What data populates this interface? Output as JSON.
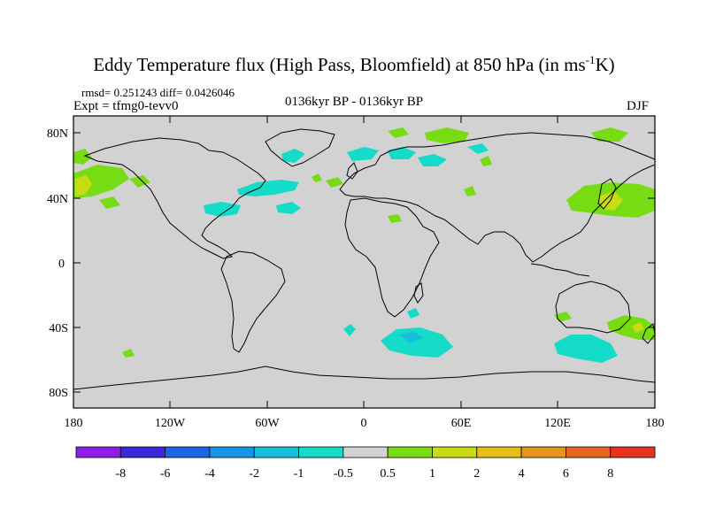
{
  "title": {
    "prefix": "Eddy Temperature flux (High Pass, Bloomfield) at 850 hPa (in ms",
    "superscript": "-1",
    "suffix": "K)"
  },
  "stats": "rmsd= 0.251243 diff= 0.0426046",
  "experiment": "Expt = tfmg0-tevv0",
  "comparison": "0136kyr BP - 0136kyr BP",
  "season": "DJF",
  "map": {
    "projection": "cylindrical equidistant",
    "lat_labels": [
      "80N",
      "40N",
      "0",
      "40S",
      "80S"
    ],
    "lon_labels": [
      "180",
      "120W",
      "60W",
      "0",
      "60E",
      "120E",
      "180"
    ],
    "background_color": "#d2d2d2"
  },
  "colorbar": {
    "labels": [
      "-8",
      "-6",
      "-4",
      "-2",
      "-1",
      "-0.5",
      "0.5",
      "1",
      "2",
      "4",
      "6",
      "8"
    ],
    "colors": [
      "#8c1ee6",
      "#3c28dc",
      "#1e64e6",
      "#1496e6",
      "#14bedc",
      "#14dcc8",
      "#d2d2d2",
      "#78dc14",
      "#c8dc14",
      "#e6be14",
      "#e6961e",
      "#e6641e",
      "#e6321e"
    ]
  }
}
